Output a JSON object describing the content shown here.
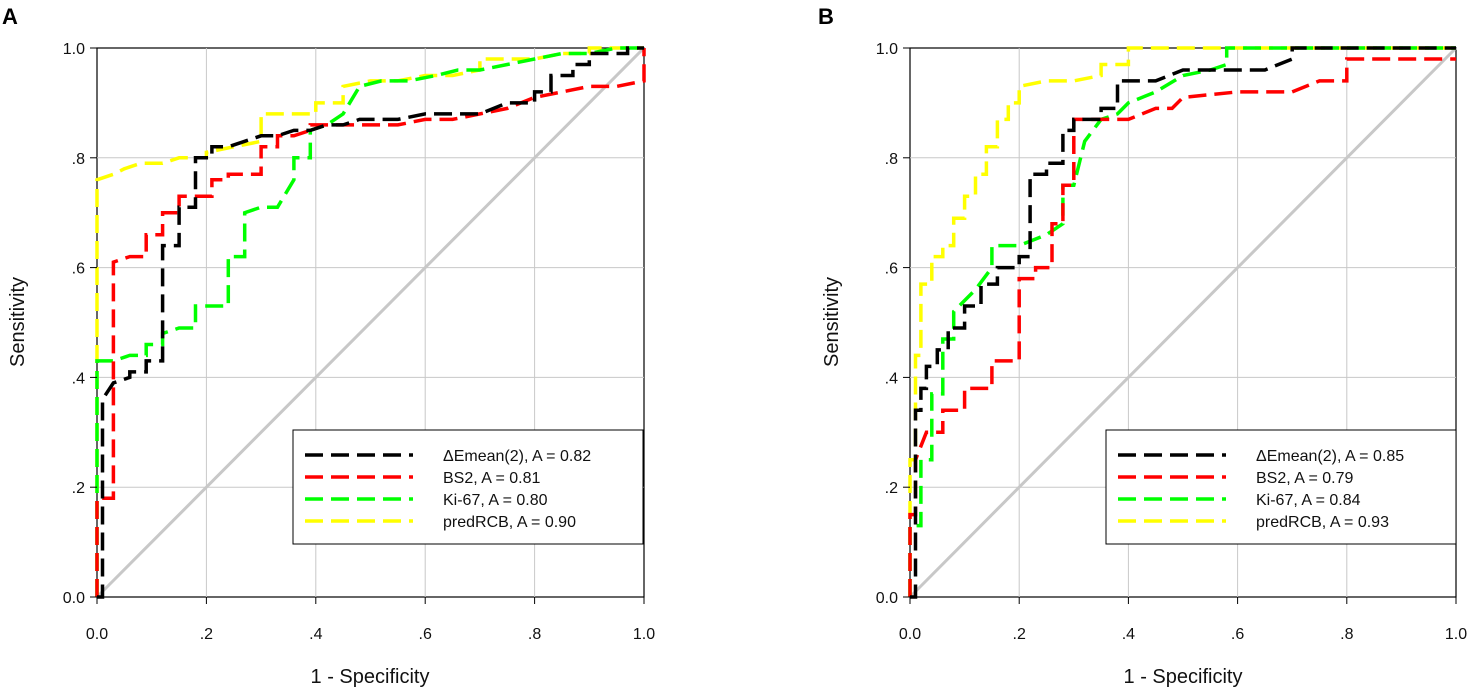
{
  "chart_data": [
    {
      "panel": "A",
      "type": "line",
      "xlabel": "1 - Specificity",
      "ylabel": "Sensitivity",
      "xlim": [
        0,
        1
      ],
      "ylim": [
        0,
        1
      ],
      "grid": true,
      "legend_position": "bottom-right",
      "xtick_labels": [
        "0.0",
        ".2",
        ".4",
        ".6",
        ".8",
        "1.0"
      ],
      "ytick_labels": [
        "0.0",
        ".2",
        ".4",
        ".6",
        ".8",
        "1.0"
      ],
      "diagonal_color": "#c8c8c8",
      "series": [
        {
          "name": "ΔEmean(2), A = 0.82",
          "color": "#000000",
          "x": [
            0,
            0.01,
            0.01,
            0.03,
            0.06,
            0.06,
            0.09,
            0.09,
            0.12,
            0.12,
            0.15,
            0.15,
            0.18,
            0.18,
            0.21,
            0.21,
            0.24,
            0.27,
            0.3,
            0.33,
            0.36,
            0.39,
            0.42,
            0.45,
            0.48,
            0.55,
            0.6,
            0.65,
            0.7,
            0.75,
            0.8,
            0.8,
            0.83,
            0.83,
            0.87,
            0.87,
            0.9,
            0.9,
            0.94,
            0.94,
            0.97,
            0.97,
            1.0
          ],
          "y": [
            0,
            0,
            0.36,
            0.39,
            0.4,
            0.41,
            0.41,
            0.43,
            0.43,
            0.64,
            0.64,
            0.71,
            0.71,
            0.8,
            0.8,
            0.82,
            0.82,
            0.83,
            0.84,
            0.84,
            0.85,
            0.85,
            0.86,
            0.86,
            0.87,
            0.87,
            0.88,
            0.88,
            0.88,
            0.9,
            0.9,
            0.92,
            0.92,
            0.95,
            0.95,
            0.97,
            0.97,
            0.99,
            0.99,
            0.99,
            0.99,
            1.0,
            1.0
          ]
        },
        {
          "name": "BS2, A = 0.81",
          "color": "#ff0000",
          "x": [
            0,
            0,
            0.03,
            0.03,
            0.06,
            0.09,
            0.09,
            0.12,
            0.12,
            0.15,
            0.15,
            0.18,
            0.18,
            0.21,
            0.21,
            0.24,
            0.24,
            0.3,
            0.3,
            0.33,
            0.33,
            0.36,
            0.39,
            0.39,
            0.45,
            0.5,
            0.55,
            0.6,
            0.65,
            0.7,
            0.75,
            0.8,
            0.85,
            0.9,
            0.95,
            1.0,
            1.0
          ],
          "y": [
            0,
            0.18,
            0.18,
            0.61,
            0.62,
            0.62,
            0.66,
            0.66,
            0.7,
            0.7,
            0.73,
            0.73,
            0.73,
            0.73,
            0.76,
            0.76,
            0.77,
            0.77,
            0.82,
            0.82,
            0.84,
            0.84,
            0.85,
            0.86,
            0.86,
            0.86,
            0.86,
            0.87,
            0.87,
            0.88,
            0.89,
            0.91,
            0.92,
            0.93,
            0.93,
            0.94,
            1.0
          ]
        },
        {
          "name": "Ki-67, A = 0.80",
          "color": "#00ff00",
          "x": [
            0,
            0,
            0.03,
            0.06,
            0.09,
            0.09,
            0.12,
            0.12,
            0.15,
            0.18,
            0.18,
            0.21,
            0.24,
            0.24,
            0.27,
            0.27,
            0.3,
            0.33,
            0.36,
            0.36,
            0.39,
            0.39,
            0.42,
            0.45,
            0.48,
            0.52,
            0.57,
            0.62,
            0.66,
            0.7,
            0.75,
            0.8,
            0.85,
            0.9,
            0.95,
            1.0
          ],
          "y": [
            0,
            0.43,
            0.43,
            0.44,
            0.44,
            0.46,
            0.46,
            0.48,
            0.49,
            0.49,
            0.53,
            0.53,
            0.53,
            0.62,
            0.62,
            0.7,
            0.71,
            0.71,
            0.76,
            0.8,
            0.8,
            0.85,
            0.86,
            0.88,
            0.93,
            0.94,
            0.94,
            0.95,
            0.96,
            0.96,
            0.97,
            0.98,
            0.99,
            0.99,
            1.0,
            1.0
          ]
        },
        {
          "name": "predRCB, A = 0.90",
          "color": "#ffff00",
          "x": [
            0,
            0,
            0.03,
            0.05,
            0.08,
            0.12,
            0.15,
            0.2,
            0.2,
            0.25,
            0.3,
            0.3,
            0.35,
            0.4,
            0.4,
            0.45,
            0.45,
            0.5,
            0.55,
            0.6,
            0.65,
            0.7,
            0.7,
            0.75,
            0.8,
            0.85,
            0.9,
            0.9,
            0.95,
            1.0
          ],
          "y": [
            0,
            0.76,
            0.77,
            0.78,
            0.79,
            0.79,
            0.8,
            0.8,
            0.81,
            0.82,
            0.83,
            0.88,
            0.88,
            0.88,
            0.9,
            0.9,
            0.93,
            0.94,
            0.94,
            0.95,
            0.95,
            0.96,
            0.98,
            0.98,
            0.98,
            0.99,
            0.99,
            1.0,
            1.0,
            1.0
          ]
        }
      ]
    },
    {
      "panel": "B",
      "type": "line",
      "xlabel": "1 - Specificity",
      "ylabel": "Sensitivity",
      "xlim": [
        0,
        1
      ],
      "ylim": [
        0,
        1
      ],
      "grid": true,
      "legend_position": "bottom-right",
      "xtick_labels": [
        "0.0",
        ".2",
        ".4",
        ".6",
        ".8",
        "1.0"
      ],
      "ytick_labels": [
        "0.0",
        ".2",
        ".4",
        ".6",
        ".8",
        "1.0"
      ],
      "diagonal_color": "#c8c8c8",
      "series": [
        {
          "name": "ΔEmean(2), A = 0.85",
          "color": "#000000",
          "x": [
            0,
            0.01,
            0.01,
            0.02,
            0.02,
            0.03,
            0.03,
            0.05,
            0.05,
            0.07,
            0.07,
            0.1,
            0.1,
            0.13,
            0.13,
            0.16,
            0.16,
            0.2,
            0.2,
            0.22,
            0.22,
            0.25,
            0.25,
            0.28,
            0.28,
            0.3,
            0.3,
            0.35,
            0.35,
            0.38,
            0.38,
            0.45,
            0.45,
            0.5,
            0.55,
            0.65,
            0.7,
            0.7,
            1.0
          ],
          "y": [
            0,
            0,
            0.34,
            0.34,
            0.38,
            0.38,
            0.42,
            0.42,
            0.45,
            0.45,
            0.49,
            0.49,
            0.53,
            0.53,
            0.57,
            0.57,
            0.6,
            0.6,
            0.62,
            0.62,
            0.77,
            0.77,
            0.79,
            0.79,
            0.85,
            0.85,
            0.87,
            0.87,
            0.89,
            0.89,
            0.94,
            0.94,
            0.94,
            0.96,
            0.96,
            0.96,
            0.98,
            1.0,
            1.0
          ]
        },
        {
          "name": "BS2, A = 0.79",
          "color": "#ff0000",
          "x": [
            0,
            0,
            0.01,
            0.01,
            0.03,
            0.06,
            0.06,
            0.08,
            0.1,
            0.1,
            0.13,
            0.15,
            0.15,
            0.18,
            0.18,
            0.2,
            0.2,
            0.23,
            0.23,
            0.26,
            0.26,
            0.28,
            0.28,
            0.3,
            0.3,
            0.35,
            0.38,
            0.4,
            0.45,
            0.48,
            0.5,
            0.6,
            0.7,
            0.75,
            0.8,
            0.8,
            1.0
          ],
          "y": [
            0,
            0.15,
            0.15,
            0.25,
            0.3,
            0.3,
            0.34,
            0.34,
            0.34,
            0.38,
            0.38,
            0.38,
            0.43,
            0.43,
            0.43,
            0.43,
            0.58,
            0.58,
            0.6,
            0.6,
            0.68,
            0.68,
            0.75,
            0.75,
            0.87,
            0.87,
            0.87,
            0.87,
            0.89,
            0.89,
            0.91,
            0.92,
            0.92,
            0.94,
            0.94,
            0.98,
            0.98
          ]
        },
        {
          "name": "Ki-67, A = 0.84",
          "color": "#00ff00",
          "x": [
            0,
            0,
            0.02,
            0.02,
            0.04,
            0.04,
            0.06,
            0.06,
            0.08,
            0.08,
            0.12,
            0.15,
            0.15,
            0.2,
            0.25,
            0.28,
            0.28,
            0.3,
            0.32,
            0.35,
            0.38,
            0.4,
            0.45,
            0.5,
            0.55,
            0.58,
            0.58,
            1.0
          ],
          "y": [
            0,
            0.13,
            0.13,
            0.25,
            0.25,
            0.37,
            0.37,
            0.47,
            0.47,
            0.52,
            0.56,
            0.6,
            0.64,
            0.64,
            0.66,
            0.68,
            0.75,
            0.75,
            0.83,
            0.87,
            0.88,
            0.9,
            0.92,
            0.95,
            0.96,
            0.97,
            1.0,
            1.0
          ]
        },
        {
          "name": "predRCB, A = 0.93",
          "color": "#ffff00",
          "x": [
            0,
            0,
            0.01,
            0.01,
            0.02,
            0.02,
            0.04,
            0.04,
            0.06,
            0.06,
            0.08,
            0.08,
            0.1,
            0.1,
            0.12,
            0.12,
            0.14,
            0.14,
            0.16,
            0.16,
            0.18,
            0.18,
            0.2,
            0.2,
            0.25,
            0.3,
            0.35,
            0.35,
            0.4,
            0.4,
            0.5,
            0.6,
            0.7,
            1.0
          ],
          "y": [
            0,
            0.25,
            0.25,
            0.44,
            0.44,
            0.57,
            0.57,
            0.62,
            0.62,
            0.64,
            0.64,
            0.69,
            0.69,
            0.73,
            0.73,
            0.77,
            0.77,
            0.82,
            0.82,
            0.87,
            0.87,
            0.9,
            0.9,
            0.93,
            0.94,
            0.94,
            0.95,
            0.97,
            0.97,
            1.0,
            1.0,
            1.0,
            1.0,
            1.0
          ]
        }
      ]
    }
  ]
}
